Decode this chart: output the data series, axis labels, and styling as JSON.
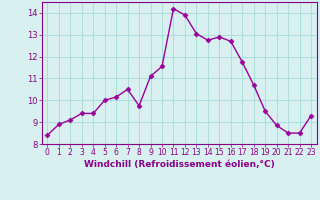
{
  "x": [
    0,
    1,
    2,
    3,
    4,
    5,
    6,
    7,
    8,
    9,
    10,
    11,
    12,
    13,
    14,
    15,
    16,
    17,
    18,
    19,
    20,
    21,
    22,
    23
  ],
  "y": [
    8.4,
    8.9,
    9.1,
    9.4,
    9.4,
    10.0,
    10.15,
    10.5,
    9.75,
    11.1,
    11.55,
    14.2,
    13.9,
    13.05,
    12.75,
    12.9,
    12.7,
    11.75,
    10.7,
    9.5,
    8.85,
    8.5,
    8.5,
    9.3
  ],
  "line_color": "#990099",
  "marker": "D",
  "marker_size": 2.5,
  "bg_color": "#d8f0f0",
  "grid_color": "#aadddd",
  "xlabel": "Windchill (Refroidissement éolien,°C)",
  "xlabel_color": "#880088",
  "tick_color": "#880088",
  "spine_color": "#880088",
  "ylim": [
    8,
    14.5
  ],
  "xlim": [
    -0.5,
    23.5
  ],
  "yticks": [
    8,
    9,
    10,
    11,
    12,
    13,
    14
  ],
  "xticks": [
    0,
    1,
    2,
    3,
    4,
    5,
    6,
    7,
    8,
    9,
    10,
    11,
    12,
    13,
    14,
    15,
    16,
    17,
    18,
    19,
    20,
    21,
    22,
    23
  ],
  "linewidth": 1.0,
  "xlabel_fontsize": 6.5,
  "tick_fontsize": 6.0,
  "xtick_fontsize": 5.5
}
